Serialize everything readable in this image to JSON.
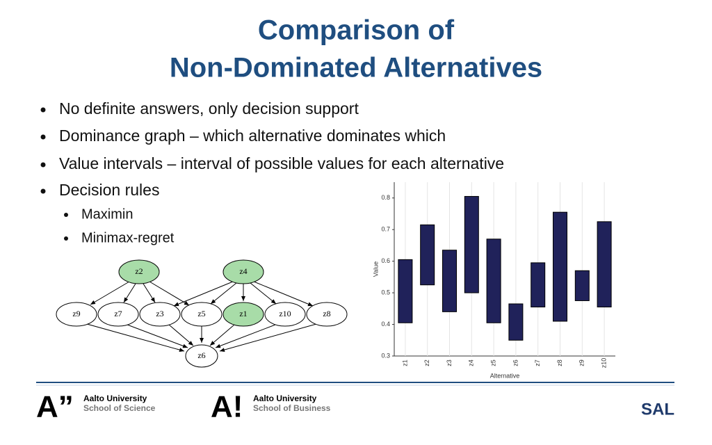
{
  "title": [
    "Comparison of",
    "Non-Dominated Alternatives"
  ],
  "bullets": [
    "No definite answers, only decision support",
    "Dominance graph – which alternative dominates which",
    "Value intervals – interval of possible values for each alternative",
    "Decision rules"
  ],
  "sub_bullets": [
    "Maximin",
    "Minimax-regret"
  ],
  "graph": {
    "nodes": [
      "z2",
      "z4",
      "z9",
      "z7",
      "z3",
      "z5",
      "z1",
      "z10",
      "z8",
      "z6"
    ]
  },
  "chart_data": {
    "type": "range_bar",
    "categories": [
      "z1",
      "z2",
      "z3",
      "z4",
      "z5",
      "z6",
      "z7",
      "z8",
      "z9",
      "z10"
    ],
    "low": [
      0.405,
      0.525,
      0.44,
      0.5,
      0.405,
      0.35,
      0.455,
      0.41,
      0.475,
      0.455
    ],
    "high": [
      0.605,
      0.715,
      0.635,
      0.805,
      0.67,
      0.465,
      0.595,
      0.755,
      0.57,
      0.725
    ],
    "color": "#20225a",
    "xlabel": "Alternative",
    "ylabel": "Value",
    "ylim": [
      0.3,
      0.85
    ],
    "yticks": [
      0.3,
      0.4,
      0.5,
      0.6,
      0.7,
      0.8
    ],
    "grid": true
  },
  "footer": {
    "logo1": {
      "mark": "A”",
      "line1": "Aalto University",
      "line2": "School of Science"
    },
    "logo2": {
      "mark": "A!",
      "line1": "Aalto University",
      "line2": "School of Business"
    },
    "logo3": "SAL"
  }
}
